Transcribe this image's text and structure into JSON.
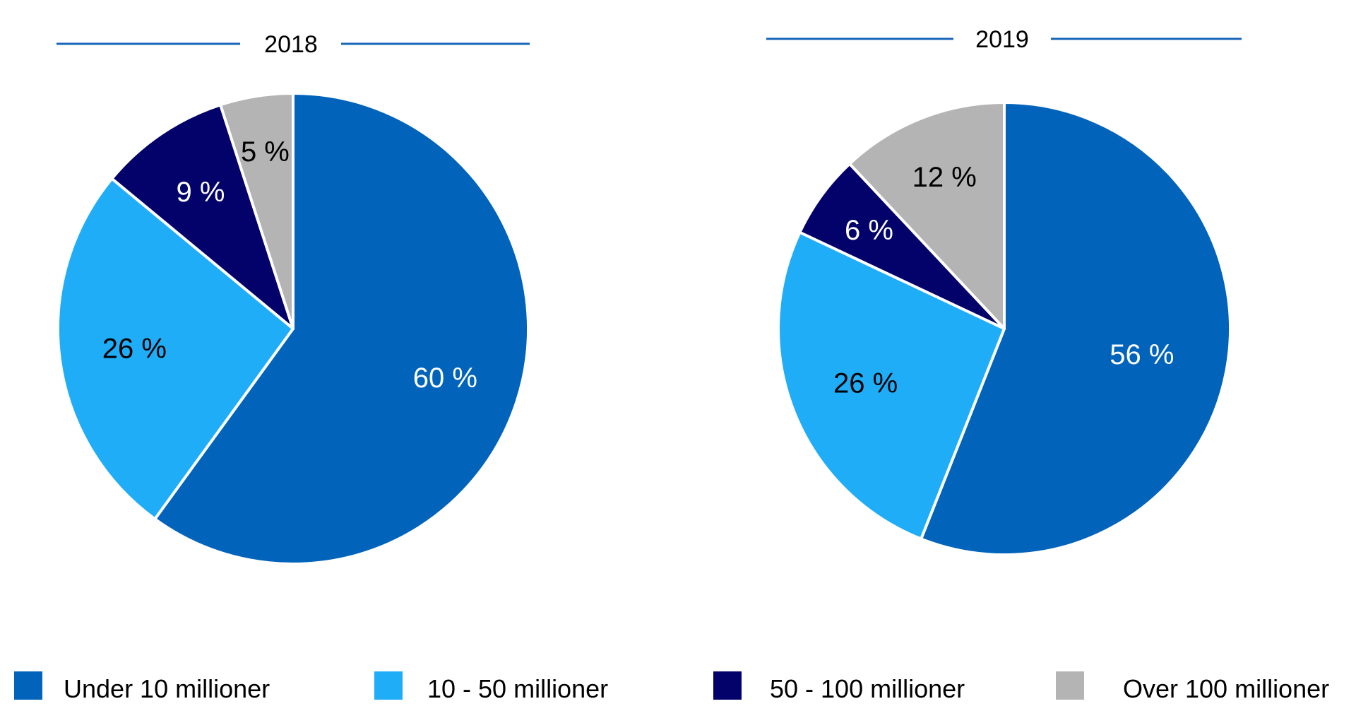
{
  "chart_data": [
    {
      "type": "pie",
      "title": "2018",
      "categories": [
        "Under 10 millioner",
        "10 - 50 millioner",
        "50 - 100 millioner",
        "Over 100 millioner"
      ],
      "values": [
        60,
        26,
        9,
        5
      ],
      "labels": [
        "60 %",
        "26 %",
        "9 %",
        "5 %"
      ],
      "colors": [
        "#0163BA",
        "#20ADF8",
        "#03016A",
        "#B4B4B4"
      ],
      "label_colors": [
        "#FFFFFF",
        "#000000",
        "#FFFFFF",
        "#000000"
      ]
    },
    {
      "type": "pie",
      "title": "2019",
      "categories": [
        "Under 10 millioner",
        "10 - 50 millioner",
        "50 - 100 millioner",
        "Over 100 millioner"
      ],
      "values": [
        56,
        26,
        6,
        12
      ],
      "labels": [
        "56 %",
        "26 %",
        "6 %",
        "12 %"
      ],
      "colors": [
        "#0163BA",
        "#20ADF8",
        "#03016A",
        "#B4B4B4"
      ],
      "label_colors": [
        "#FFFFFF",
        "#000000",
        "#FFFFFF",
        "#000000"
      ]
    }
  ],
  "legend": {
    "placement": "bottom",
    "items": [
      {
        "label": "Under 10 millioner",
        "color": "#0163BA"
      },
      {
        "label": "10 - 50 millioner",
        "color": "#20ADF8"
      },
      {
        "label": "50 - 100 millioner",
        "color": "#03016A"
      },
      {
        "label": "Over 100 millioner",
        "color": "#B4B4B4"
      }
    ]
  },
  "title_rule_color": "#1866B8"
}
